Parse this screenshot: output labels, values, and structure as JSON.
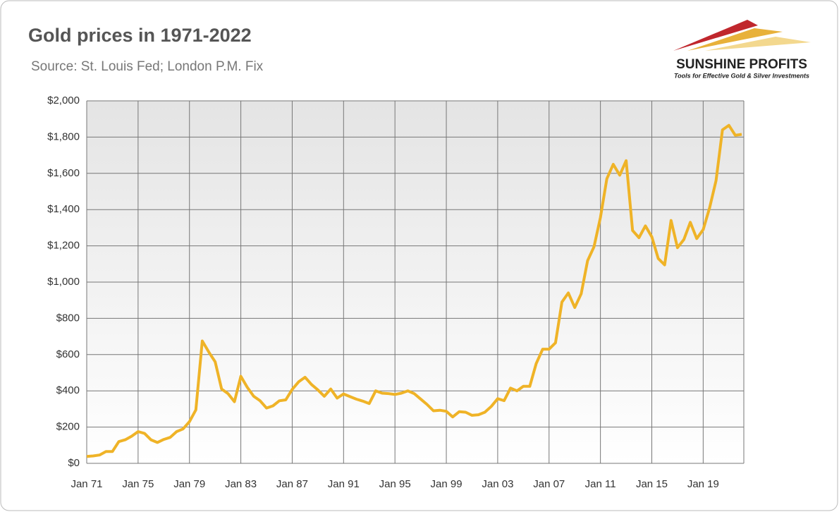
{
  "logo": {
    "name": "SUNSHINE PROFITS",
    "tagline": "Tools for Effective Gold & Silver Investments"
  },
  "chart_data": {
    "type": "line",
    "title": "Gold prices in 1971-2022",
    "subtitle": "Source: St. Louis Fed; London P.M. Fix",
    "categories": [
      "Jan 71",
      null,
      null,
      null,
      null,
      null,
      null,
      null,
      "Jan 75",
      null,
      null,
      null,
      null,
      null,
      null,
      null,
      "Jan 79",
      null,
      null,
      null,
      null,
      null,
      null,
      null,
      "Jan 83",
      null,
      null,
      null,
      null,
      null,
      null,
      null,
      "Jan 87",
      null,
      null,
      null,
      null,
      null,
      null,
      null,
      "Jan 91",
      null,
      null,
      null,
      null,
      null,
      null,
      null,
      "Jan 95",
      null,
      null,
      null,
      null,
      null,
      null,
      null,
      "Jan 99",
      null,
      null,
      null,
      null,
      null,
      null,
      null,
      "Jan 03",
      null,
      null,
      null,
      null,
      null,
      null,
      null,
      "Jan 07",
      null,
      null,
      null,
      null,
      null,
      null,
      null,
      "Jan 11",
      null,
      null,
      null,
      null,
      null,
      null,
      null,
      "Jan 15",
      null,
      null,
      null,
      null,
      null,
      null,
      null,
      "Jan 19",
      null,
      null,
      null,
      null,
      null,
      null
    ],
    "series": [
      {
        "color": "#efb327",
        "values": [
          38,
          41,
          46,
          65,
          65,
          120,
          130,
          150,
          175,
          165,
          130,
          115,
          132,
          143,
          175,
          190,
          230,
          295,
          675,
          615,
          560,
          410,
          385,
          340,
          480,
          420,
          370,
          345,
          305,
          317,
          345,
          350,
          408,
          450,
          475,
          435,
          405,
          370,
          410,
          360,
          383,
          368,
          354,
          343,
          330,
          400,
          387,
          385,
          380,
          387,
          400,
          385,
          355,
          325,
          290,
          293,
          287,
          256,
          285,
          282,
          265,
          268,
          282,
          314,
          357,
          346,
          415,
          400,
          425,
          425,
          550,
          630,
          630,
          665,
          890,
          940,
          860,
          935,
          1118,
          1195,
          1356,
          1570,
          1650,
          1590,
          1670,
          1285,
          1245,
          1310,
          1250,
          1130,
          1095,
          1340,
          1190,
          1235,
          1330,
          1240,
          1290,
          1410,
          1560,
          1840,
          1865,
          1810,
          1815
        ]
      }
    ],
    "ylim": [
      0,
      2000
    ],
    "yticks": [
      {
        "value": 0,
        "label": "$0"
      },
      {
        "value": 200,
        "label": "$200"
      },
      {
        "value": 400,
        "label": "$400"
      },
      {
        "value": 600,
        "label": "$600"
      },
      {
        "value": 800,
        "label": "$800"
      },
      {
        "value": 1000,
        "label": "$1,000"
      },
      {
        "value": 1200,
        "label": "$1,200"
      },
      {
        "value": 1400,
        "label": "$1,400"
      },
      {
        "value": 1600,
        "label": "$1,600"
      },
      {
        "value": 1800,
        "label": "$1,800"
      },
      {
        "value": 2000,
        "label": "$2,000"
      }
    ],
    "grid": true
  }
}
